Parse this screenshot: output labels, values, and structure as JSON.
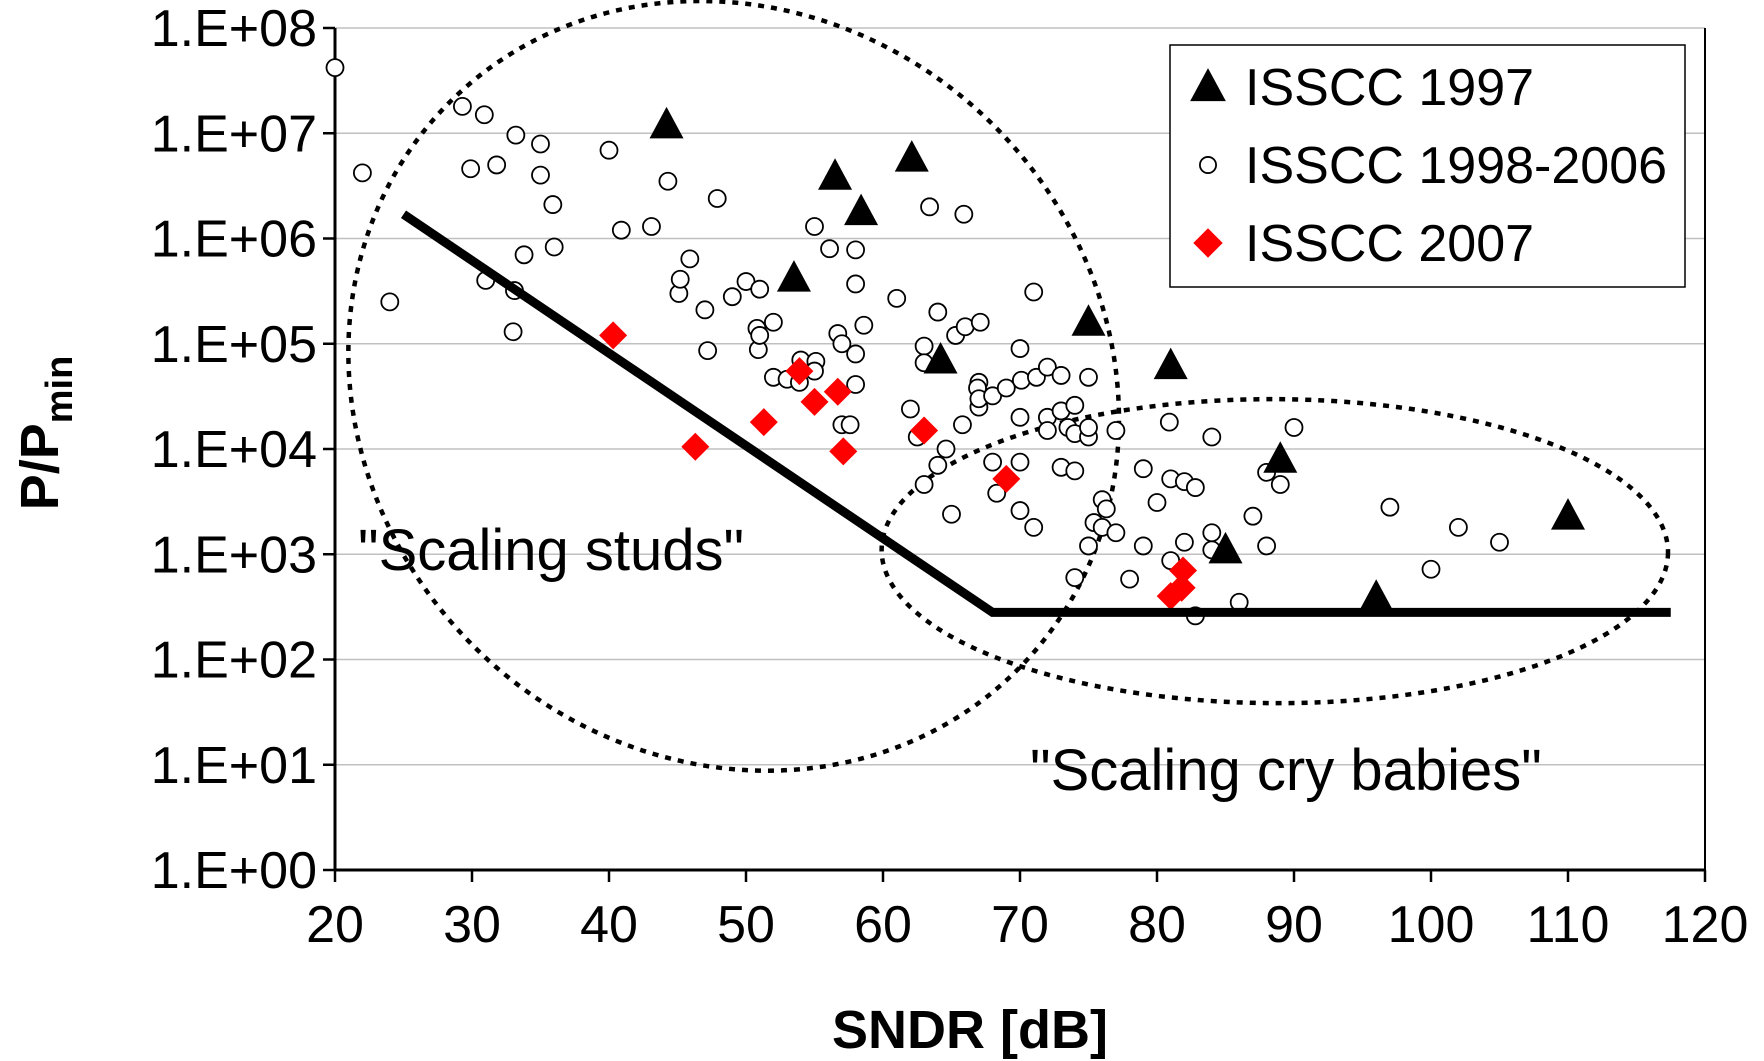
{
  "chart_data": {
    "type": "scatter",
    "xlabel": "SNDR [dB]",
    "ylabel": {
      "main": "P/P",
      "sub": "min"
    },
    "xlim": [
      20,
      120
    ],
    "ylim": [
      1,
      100000000
    ],
    "yscale": "log",
    "grid": "horizontal",
    "legend_position": "top-right",
    "x_ticks": [
      "20",
      "30",
      "40",
      "50",
      "60",
      "70",
      "80",
      "90",
      "100",
      "110",
      "120"
    ],
    "y_ticks": [
      "1.E+00",
      "1.E+01",
      "1.E+02",
      "1.E+03",
      "1.E+04",
      "1.E+05",
      "1.E+06",
      "1.E+07",
      "1.E+08"
    ],
    "series": [
      {
        "name": "ISSCC 1997",
        "marker": "triangle",
        "color": "#000000",
        "points": [
          [
            44.2,
            12000000
          ],
          [
            56.5,
            3900000
          ],
          [
            58.4,
            1800000
          ],
          [
            62.1,
            5800000
          ],
          [
            53.5,
            420000
          ],
          [
            64.2,
            70000
          ],
          [
            75.0,
            160000
          ],
          [
            81.0,
            62000
          ],
          [
            89.0,
            8000
          ],
          [
            85.0,
            1100
          ],
          [
            96.0,
            390
          ],
          [
            110.0,
            2300
          ]
        ]
      },
      {
        "name": "ISSCC 1998-2006",
        "marker": "open-circle",
        "color": "#000000",
        "points": [
          [
            20.0,
            42000000
          ],
          [
            22.0,
            4200000
          ],
          [
            24.0,
            250000
          ],
          [
            29.3,
            18000000
          ],
          [
            29.9,
            4600000
          ],
          [
            30.9,
            15000000
          ],
          [
            31.0,
            400000
          ],
          [
            31.8,
            5000000
          ],
          [
            33.0,
            130000
          ],
          [
            33.1,
            320000
          ],
          [
            33.2,
            9600000
          ],
          [
            33.8,
            700000
          ],
          [
            35.0,
            4000000
          ],
          [
            35.0,
            7900000
          ],
          [
            35.9,
            2100000
          ],
          [
            36.0,
            830000
          ],
          [
            40.0,
            6900000
          ],
          [
            40.9,
            1200000
          ],
          [
            43.1,
            1300000
          ],
          [
            44.3,
            3500000
          ],
          [
            45.1,
            300000
          ],
          [
            45.2,
            410000
          ],
          [
            45.9,
            640000
          ],
          [
            47.0,
            210000
          ],
          [
            47.2,
            86000
          ],
          [
            47.9,
            2400000
          ],
          [
            49.0,
            280000
          ],
          [
            50.0,
            390000
          ],
          [
            51.0,
            330000
          ],
          [
            50.8,
            140000
          ],
          [
            50.9,
            88000
          ],
          [
            51.0,
            120000
          ],
          [
            52.0,
            48000
          ],
          [
            52.0,
            160000
          ],
          [
            53.0,
            46000
          ],
          [
            53.9,
            43000
          ],
          [
            54.0,
            70000
          ],
          [
            55.0,
            1300000
          ],
          [
            55.1,
            68000
          ],
          [
            55.0,
            55000
          ],
          [
            56.1,
            800000
          ],
          [
            56.7,
            125000
          ],
          [
            57.0,
            100000
          ],
          [
            57.0,
            17000
          ],
          [
            57.6,
            17000
          ],
          [
            58.0,
            780000
          ],
          [
            58.0,
            80000
          ],
          [
            58.0,
            41000
          ],
          [
            58.0,
            370000
          ],
          [
            58.6,
            150000
          ],
          [
            61.0,
            270000
          ],
          [
            62.0,
            24000
          ],
          [
            62.5,
            13000
          ],
          [
            63.0,
            95000
          ],
          [
            63.0,
            66000
          ],
          [
            63.4,
            2000000
          ],
          [
            63.0,
            4600
          ],
          [
            64.0,
            7000
          ],
          [
            64.0,
            200000
          ],
          [
            65.0,
            2400
          ],
          [
            64.6,
            10000
          ],
          [
            65.3,
            120000
          ],
          [
            65.8,
            17000
          ],
          [
            65.9,
            1700000
          ],
          [
            66.0,
            145000
          ],
          [
            67.0,
            43000
          ],
          [
            66.9,
            38000
          ],
          [
            67.1,
            160000
          ],
          [
            67.0,
            25000
          ],
          [
            67.0,
            30000
          ],
          [
            68.0,
            32000
          ],
          [
            68.0,
            7500
          ],
          [
            68.3,
            3800
          ],
          [
            69.0,
            38000
          ],
          [
            70.0,
            7500
          ],
          [
            70.0,
            2600
          ],
          [
            70.0,
            20000
          ],
          [
            70.0,
            90000
          ],
          [
            70.1,
            45000
          ],
          [
            71.0,
            1800
          ],
          [
            71.0,
            310000
          ],
          [
            71.2,
            48000
          ],
          [
            72.0,
            60000
          ],
          [
            72.0,
            20000
          ],
          [
            72.0,
            15000
          ],
          [
            73.0,
            6700
          ],
          [
            73.0,
            23000
          ],
          [
            73.0,
            50000
          ],
          [
            73.5,
            16000
          ],
          [
            74.0,
            600
          ],
          [
            74.0,
            6200
          ],
          [
            74.0,
            14000
          ],
          [
            74.0,
            26000
          ],
          [
            75.0,
            1200
          ],
          [
            75.0,
            13000
          ],
          [
            75.0,
            16000
          ],
          [
            75.0,
            48000
          ],
          [
            75.4,
            2000
          ],
          [
            76.0,
            1800
          ],
          [
            76.0,
            3300
          ],
          [
            76.3,
            2700
          ],
          [
            77.0,
            1600
          ],
          [
            77.0,
            15000
          ],
          [
            78.0,
            580
          ],
          [
            79.0,
            1200
          ],
          [
            79.0,
            6500
          ],
          [
            80.0,
            3100
          ],
          [
            80.9,
            18000
          ],
          [
            81.0,
            870
          ],
          [
            81.0,
            5200
          ],
          [
            82.0,
            1300
          ],
          [
            82.0,
            4900
          ],
          [
            82.8,
            4300
          ],
          [
            82.8,
            260
          ],
          [
            84.0,
            13000
          ],
          [
            84.0,
            1600
          ],
          [
            84.0,
            1100
          ],
          [
            86.0,
            350
          ],
          [
            87.0,
            2300
          ],
          [
            88.0,
            6000
          ],
          [
            88.0,
            1200
          ],
          [
            89.0,
            4600
          ],
          [
            90.0,
            16000
          ],
          [
            97.0,
            2800
          ],
          [
            100.0,
            720
          ],
          [
            102.0,
            1800
          ],
          [
            105.0,
            1300
          ]
        ]
      },
      {
        "name": "ISSCC 2007",
        "marker": "diamond",
        "color": "#ff0000",
        "points": [
          [
            40.3,
            120000
          ],
          [
            46.3,
            10500
          ],
          [
            51.3,
            18000
          ],
          [
            53.9,
            55000
          ],
          [
            55.0,
            28000
          ],
          [
            56.7,
            35000
          ],
          [
            57.1,
            9500
          ],
          [
            63.0,
            15000
          ],
          [
            69.0,
            5200
          ],
          [
            81.0,
            400
          ],
          [
            81.8,
            480
          ],
          [
            81.9,
            700
          ]
        ]
      }
    ],
    "bound_line": [
      [
        25,
        1700000
      ],
      [
        68,
        280
      ],
      [
        117.5,
        280
      ]
    ],
    "annotations": [
      "\"Scaling studs\"",
      "\"Scaling cry babies\""
    ],
    "ellipses": [
      {
        "name": "scaling-studs-region",
        "center": [
          49.1,
          39800
        ],
        "x_semi_extent": 29.3,
        "y_angle_deg": 44.6
      },
      {
        "name": "scaling-cry-babies-region",
        "center": [
          88.6,
          1070
        ],
        "x_semi_extent": 28.7,
        "y_angle_deg": 0.2
      }
    ]
  }
}
